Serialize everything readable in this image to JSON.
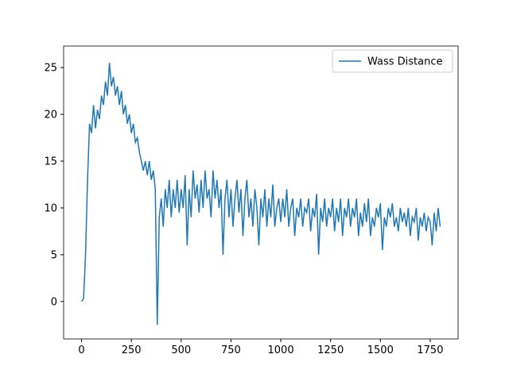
{
  "chart_data": {
    "type": "line",
    "x": [
      0,
      10,
      20,
      30,
      40,
      50,
      60,
      70,
      80,
      90,
      100,
      110,
      120,
      130,
      140,
      150,
      160,
      170,
      180,
      190,
      200,
      210,
      220,
      230,
      240,
      250,
      260,
      270,
      280,
      290,
      300,
      310,
      320,
      330,
      340,
      350,
      360,
      370,
      380,
      390,
      400,
      410,
      420,
      430,
      440,
      450,
      460,
      470,
      480,
      490,
      500,
      510,
      520,
      530,
      540,
      550,
      560,
      570,
      580,
      590,
      600,
      610,
      620,
      630,
      640,
      650,
      660,
      670,
      680,
      690,
      700,
      710,
      720,
      730,
      740,
      750,
      760,
      770,
      780,
      790,
      800,
      810,
      820,
      830,
      840,
      850,
      860,
      870,
      880,
      890,
      900,
      910,
      920,
      930,
      940,
      950,
      960,
      970,
      980,
      990,
      1000,
      1010,
      1020,
      1030,
      1040,
      1050,
      1060,
      1070,
      1080,
      1090,
      1100,
      1110,
      1120,
      1130,
      1140,
      1150,
      1160,
      1170,
      1180,
      1190,
      1200,
      1210,
      1220,
      1230,
      1240,
      1250,
      1260,
      1270,
      1280,
      1290,
      1300,
      1310,
      1320,
      1330,
      1340,
      1350,
      1360,
      1370,
      1380,
      1390,
      1400,
      1410,
      1420,
      1430,
      1440,
      1450,
      1460,
      1470,
      1480,
      1490,
      1500,
      1510,
      1520,
      1530,
      1540,
      1550,
      1560,
      1570,
      1580,
      1590,
      1600,
      1610,
      1620,
      1630,
      1640,
      1650,
      1660,
      1670,
      1680,
      1690,
      1700,
      1710,
      1720,
      1730,
      1740,
      1750,
      1760,
      1770,
      1780,
      1790,
      1800
    ],
    "series": [
      {
        "name": "Wass Distance",
        "color": "#1f77b4",
        "values": [
          0,
          0.3,
          5,
          13,
          19,
          18,
          21,
          18.5,
          20.5,
          19.5,
          22,
          21,
          23.5,
          22,
          25.5,
          23,
          24,
          22,
          23,
          21,
          22.5,
          20,
          21,
          19,
          20,
          18,
          19,
          17,
          17.5,
          16,
          15,
          14,
          15,
          13.5,
          15,
          13,
          14,
          12,
          -2.5,
          9,
          11,
          8,
          12,
          10,
          13,
          9,
          12,
          10,
          13,
          9.5,
          12,
          10,
          13.5,
          6,
          12,
          9,
          14,
          11,
          12.5,
          9.5,
          13,
          10,
          14,
          11,
          12,
          9,
          14,
          11,
          13,
          10,
          12,
          5,
          11,
          13,
          9,
          12,
          8,
          11,
          13,
          9.5,
          12,
          7,
          11,
          13,
          9,
          11,
          8,
          12,
          10,
          6,
          11,
          9,
          12,
          8,
          11,
          9,
          12.5,
          8,
          10,
          11,
          8.5,
          11,
          9,
          12,
          8,
          10,
          11,
          7,
          10,
          9,
          11,
          8,
          10,
          9.5,
          11,
          7.5,
          10,
          9,
          11.5,
          5,
          10,
          8.5,
          11,
          8,
          10,
          9,
          11,
          7.5,
          10,
          8.5,
          11,
          7,
          10,
          9,
          11,
          8,
          10,
          9,
          11,
          7,
          9.5,
          8,
          10.5,
          8.5,
          11,
          7,
          9,
          8,
          10,
          9,
          10.5,
          5.5,
          9,
          8,
          10,
          9,
          10.5,
          8,
          9,
          7.5,
          10,
          8.5,
          9.5,
          8,
          10,
          7,
          9,
          8.5,
          10,
          6.5,
          9,
          8,
          9.5,
          7.5,
          9,
          8.5,
          6,
          9.5,
          7.5,
          10,
          8
        ]
      }
    ],
    "xlim": [
      -90,
      1890
    ],
    "ylim": [
      -4,
      27.3
    ],
    "xticks": [
      0,
      250,
      500,
      750,
      1000,
      1250,
      1500,
      1750
    ],
    "yticks": [
      0,
      5,
      10,
      15,
      20,
      25
    ],
    "legend": "upper right"
  }
}
